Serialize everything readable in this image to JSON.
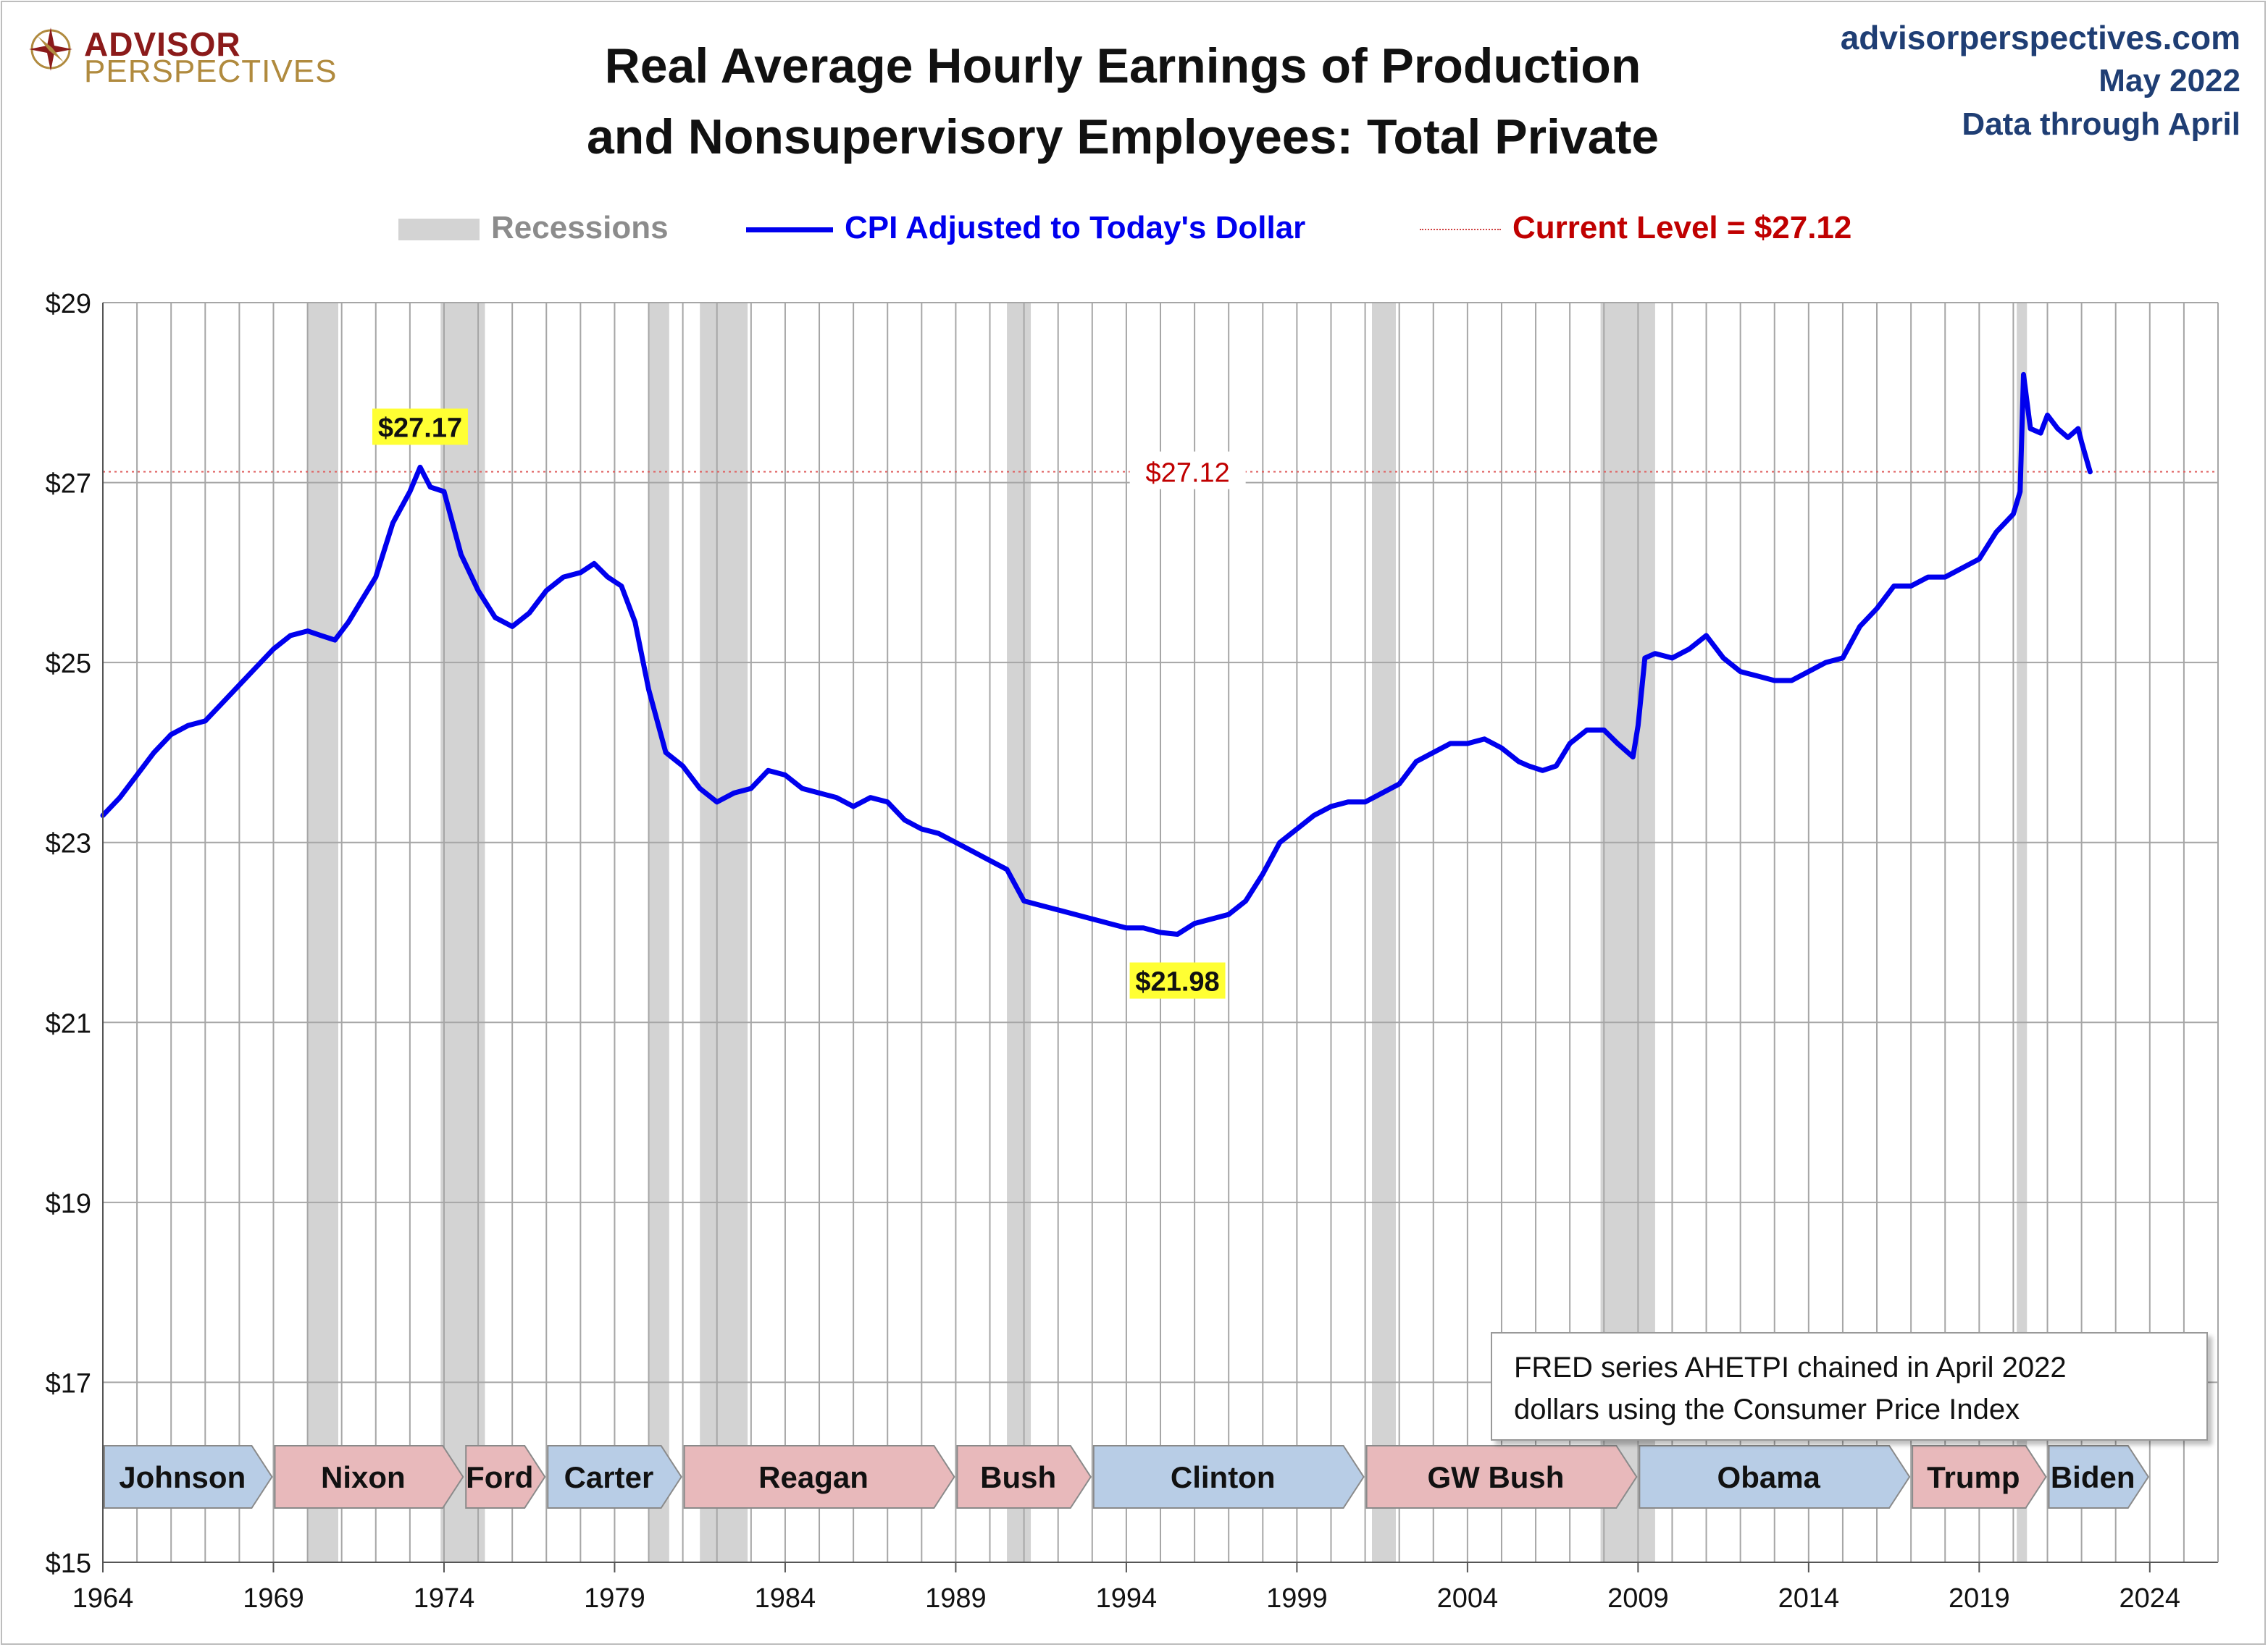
{
  "header": {
    "logo_line1": "ADVISOR",
    "logo_line2": "PERSPECTIVES",
    "title_line1": "Real Average Hourly Earnings of Production",
    "title_line2": "and Nonsupervisory Employees: Total Private",
    "site": "advisorperspectives.com",
    "date": "May 2022",
    "data_through": "Data through April"
  },
  "legend": {
    "recessions": "Recessions",
    "series": "CPI Adjusted to Today's Dollar",
    "current": "Current Level = $27.12"
  },
  "info_box": {
    "line1": "FRED series AHETPI chained in April 2022",
    "line2": "dollars using the Consumer Price Index"
  },
  "colors": {
    "line": "#0000ee",
    "current": "#c00000",
    "recession": "#d3d3d3",
    "dem": "#b8cde6",
    "rep": "#e8b9bb"
  },
  "chart_data": {
    "type": "line",
    "title": "Real Average Hourly Earnings of Production and Nonsupervisory Employees: Total Private",
    "xlim": [
      1964,
      2026
    ],
    "ylim": [
      15,
      29
    ],
    "x_ticks": [
      "1964",
      "1969",
      "1974",
      "1979",
      "1984",
      "1989",
      "1994",
      "1999",
      "2004",
      "2009",
      "2014",
      "2019",
      "2024"
    ],
    "y_ticks": [
      "$15",
      "$17",
      "$19",
      "$21",
      "$23",
      "$25",
      "$27",
      "$29"
    ],
    "grid": true,
    "series": [
      {
        "name": "CPI Adjusted to Today's Dollar",
        "x": [
          1964.0,
          1964.5,
          1965.0,
          1965.5,
          1966.0,
          1966.5,
          1967.0,
          1967.5,
          1968.0,
          1968.5,
          1969.0,
          1969.5,
          1970.0,
          1970.4,
          1970.8,
          1971.2,
          1971.6,
          1972.0,
          1972.5,
          1973.0,
          1973.3,
          1973.6,
          1974.0,
          1974.5,
          1975.0,
          1975.5,
          1976.0,
          1976.5,
          1977.0,
          1977.5,
          1978.0,
          1978.4,
          1978.8,
          1979.2,
          1979.6,
          1980.0,
          1980.5,
          1981.0,
          1981.5,
          1982.0,
          1982.5,
          1983.0,
          1983.5,
          1984.0,
          1984.5,
          1985.0,
          1985.5,
          1986.0,
          1986.5,
          1987.0,
          1987.5,
          1988.0,
          1988.5,
          1989.0,
          1989.5,
          1990.0,
          1990.5,
          1991.0,
          1991.5,
          1992.0,
          1992.5,
          1993.0,
          1993.5,
          1994.0,
          1994.5,
          1995.0,
          1995.5,
          1996.0,
          1996.5,
          1997.0,
          1997.5,
          1998.0,
          1998.5,
          1999.0,
          1999.5,
          2000.0,
          2000.5,
          2001.0,
          2001.5,
          2002.0,
          2002.5,
          2003.0,
          2003.5,
          2004.0,
          2004.5,
          2005.0,
          2005.5,
          2005.8,
          2006.2,
          2006.6,
          2007.0,
          2007.5,
          2008.0,
          2008.4,
          2008.7,
          2008.85,
          2009.0,
          2009.2,
          2009.5,
          2010.0,
          2010.5,
          2011.0,
          2011.5,
          2012.0,
          2012.5,
          2013.0,
          2013.5,
          2014.0,
          2014.5,
          2015.0,
          2015.5,
          2016.0,
          2016.5,
          2017.0,
          2017.5,
          2018.0,
          2018.5,
          2019.0,
          2019.5,
          2020.0,
          2020.2,
          2020.3,
          2020.5,
          2020.8,
          2021.0,
          2021.3,
          2021.6,
          2021.9,
          2022.0,
          2022.25
        ],
        "values": [
          23.3,
          23.5,
          23.75,
          24.0,
          24.2,
          24.3,
          24.35,
          24.55,
          24.75,
          24.95,
          25.15,
          25.3,
          25.35,
          25.3,
          25.25,
          25.45,
          25.7,
          25.95,
          26.55,
          26.9,
          27.17,
          26.95,
          26.9,
          26.2,
          25.8,
          25.5,
          25.4,
          25.55,
          25.8,
          25.95,
          26.0,
          26.1,
          25.95,
          25.85,
          25.45,
          24.7,
          24.0,
          23.85,
          23.6,
          23.45,
          23.55,
          23.6,
          23.8,
          23.75,
          23.6,
          23.55,
          23.5,
          23.4,
          23.5,
          23.45,
          23.25,
          23.15,
          23.1,
          23.0,
          22.9,
          22.8,
          22.7,
          22.35,
          22.3,
          22.25,
          22.2,
          22.15,
          22.1,
          22.05,
          22.05,
          22.0,
          21.98,
          22.1,
          22.15,
          22.2,
          22.35,
          22.65,
          23.0,
          23.15,
          23.3,
          23.4,
          23.45,
          23.45,
          23.55,
          23.65,
          23.9,
          24.0,
          24.1,
          24.1,
          24.15,
          24.05,
          23.9,
          23.85,
          23.8,
          23.85,
          24.1,
          24.25,
          24.25,
          24.1,
          24.0,
          23.95,
          24.3,
          25.05,
          25.1,
          25.05,
          25.15,
          25.3,
          25.05,
          24.9,
          24.85,
          24.8,
          24.8,
          24.9,
          25.0,
          25.05,
          25.4,
          25.6,
          25.85,
          25.85,
          25.95,
          25.95,
          26.05,
          26.15,
          26.45,
          26.65,
          26.9,
          28.2,
          27.6,
          27.55,
          27.75,
          27.6,
          27.5,
          27.6,
          27.45,
          27.12
        ]
      }
    ],
    "annotations": [
      {
        "label": "$27.17",
        "x": 1973.3,
        "y": 27.17
      },
      {
        "label": "$21.98",
        "x": 1995.5,
        "y": 21.98
      }
    ],
    "current_level": {
      "value": 27.12,
      "label": "$27.12"
    },
    "recessions": [
      [
        1970.0,
        1970.9
      ],
      [
        1973.9,
        1975.2
      ],
      [
        1980.0,
        1980.6
      ],
      [
        1981.5,
        1982.9
      ],
      [
        1990.5,
        1991.2
      ],
      [
        2001.2,
        2001.9
      ],
      [
        2007.9,
        2009.5
      ],
      [
        2020.1,
        2020.4
      ]
    ],
    "presidents": [
      {
        "name": "Johnson",
        "start": 1964.0,
        "end": 1969.0,
        "party": "D"
      },
      {
        "name": "Nixon",
        "start": 1969.0,
        "end": 1974.6,
        "party": "R"
      },
      {
        "name": "Ford",
        "start": 1974.6,
        "end": 1977.0,
        "party": "R"
      },
      {
        "name": "Carter",
        "start": 1977.0,
        "end": 1981.0,
        "party": "D"
      },
      {
        "name": "Reagan",
        "start": 1981.0,
        "end": 1989.0,
        "party": "R"
      },
      {
        "name": "Bush",
        "start": 1989.0,
        "end": 1993.0,
        "party": "R"
      },
      {
        "name": "Clinton",
        "start": 1993.0,
        "end": 2001.0,
        "party": "D"
      },
      {
        "name": "GW Bush",
        "start": 2001.0,
        "end": 2009.0,
        "party": "R"
      },
      {
        "name": "Obama",
        "start": 2009.0,
        "end": 2017.0,
        "party": "D"
      },
      {
        "name": "Trump",
        "start": 2017.0,
        "end": 2021.0,
        "party": "R"
      },
      {
        "name": "Biden",
        "start": 2021.0,
        "end": 2024.0,
        "party": "D"
      }
    ]
  }
}
